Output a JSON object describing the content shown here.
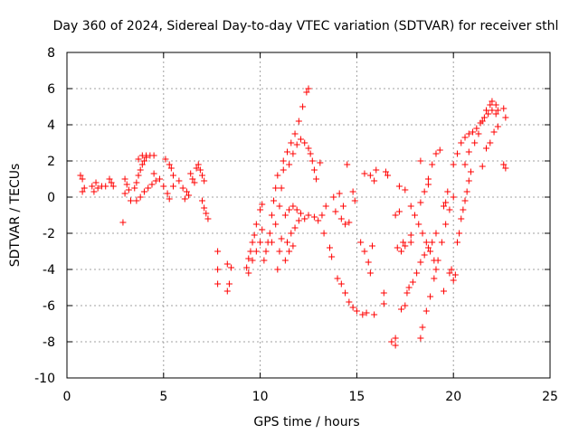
{
  "chart_data": {
    "type": "scatter",
    "title": "Day 360 of 2024, Sidereal Day-to-day VTEC variation (SDTVAR) for receiver sthl",
    "xlabel": "GPS time / hours",
    "ylabel": "SDTVAR / TECUs",
    "xlim": [
      0,
      25
    ],
    "ylim": [
      -10,
      8
    ],
    "xticks": [
      "0",
      "5",
      "10",
      "15",
      "20",
      "25"
    ],
    "yticks": [
      "-10",
      "-8",
      "-6",
      "-4",
      "-2",
      "0",
      "2",
      "4",
      "6",
      "8"
    ],
    "grid": true,
    "marker": "+",
    "color": "#ff0000",
    "series": [
      {
        "name": "SDTVAR",
        "points": [
          [
            0.7,
            1.2
          ],
          [
            0.8,
            1.0
          ],
          [
            0.9,
            0.5
          ],
          [
            0.8,
            0.3
          ],
          [
            1.3,
            0.6
          ],
          [
            1.4,
            0.3
          ],
          [
            1.5,
            0.8
          ],
          [
            1.6,
            0.5
          ],
          [
            1.8,
            0.6
          ],
          [
            2.0,
            0.6
          ],
          [
            2.2,
            1.0
          ],
          [
            2.3,
            0.8
          ],
          [
            2.4,
            0.6
          ],
          [
            2.9,
            -1.4
          ],
          [
            3.0,
            0.2
          ],
          [
            3.0,
            1.0
          ],
          [
            3.1,
            0.7
          ],
          [
            3.2,
            0.4
          ],
          [
            3.3,
            -0.2
          ],
          [
            3.5,
            0.5
          ],
          [
            3.6,
            0.8
          ],
          [
            3.7,
            1.2
          ],
          [
            3.8,
            1.5
          ],
          [
            3.9,
            1.8
          ],
          [
            4.0,
            2.0
          ],
          [
            4.1,
            2.2
          ],
          [
            4.3,
            2.3
          ],
          [
            4.5,
            2.3
          ],
          [
            3.6,
            -0.2
          ],
          [
            3.8,
            0.0
          ],
          [
            4.0,
            0.3
          ],
          [
            4.2,
            0.5
          ],
          [
            4.4,
            0.7
          ],
          [
            4.6,
            0.9
          ],
          [
            4.8,
            1.0
          ],
          [
            3.7,
            2.1
          ],
          [
            3.9,
            2.3
          ],
          [
            4.1,
            2.3
          ],
          [
            4.5,
            1.3
          ],
          [
            5.1,
            2.1
          ],
          [
            5.3,
            1.8
          ],
          [
            5.4,
            1.6
          ],
          [
            5.5,
            1.2
          ],
          [
            5.0,
            0.6
          ],
          [
            5.2,
            0.2
          ],
          [
            5.3,
            -0.1
          ],
          [
            5.5,
            0.6
          ],
          [
            5.8,
            0.9
          ],
          [
            6.0,
            0.5
          ],
          [
            6.2,
            0.3
          ],
          [
            6.3,
            0.1
          ],
          [
            6.1,
            -0.1
          ],
          [
            6.4,
            1.3
          ],
          [
            6.5,
            1.0
          ],
          [
            6.6,
            0.8
          ],
          [
            6.7,
            1.6
          ],
          [
            6.9,
            1.5
          ],
          [
            7.0,
            1.2
          ],
          [
            7.1,
            0.9
          ],
          [
            6.8,
            1.8
          ],
          [
            7.0,
            -0.2
          ],
          [
            7.1,
            -0.6
          ],
          [
            7.2,
            -0.9
          ],
          [
            7.3,
            -1.2
          ],
          [
            7.8,
            -3.0
          ],
          [
            7.8,
            -4.0
          ],
          [
            7.8,
            -4.8
          ],
          [
            8.3,
            -5.2
          ],
          [
            8.4,
            -4.8
          ],
          [
            8.5,
            -3.9
          ],
          [
            8.3,
            -3.7
          ],
          [
            9.3,
            -3.9
          ],
          [
            9.4,
            -3.4
          ],
          [
            9.5,
            -3.0
          ],
          [
            9.6,
            -2.5
          ],
          [
            9.7,
            -2.1
          ],
          [
            9.8,
            -1.5
          ],
          [
            9.4,
            -4.2
          ],
          [
            9.6,
            -3.5
          ],
          [
            9.8,
            -3.0
          ],
          [
            10.0,
            -2.5
          ],
          [
            10.1,
            -1.8
          ],
          [
            10.0,
            -0.7
          ],
          [
            10.1,
            -0.4
          ],
          [
            10.2,
            -3.5
          ],
          [
            10.3,
            -3.0
          ],
          [
            10.4,
            -2.5
          ],
          [
            10.5,
            -2.0
          ],
          [
            10.6,
            -1.0
          ],
          [
            10.7,
            -0.2
          ],
          [
            10.8,
            0.5
          ],
          [
            10.9,
            1.2
          ],
          [
            10.6,
            -2.5
          ],
          [
            10.8,
            -1.5
          ],
          [
            11.0,
            -0.5
          ],
          [
            11.1,
            0.5
          ],
          [
            11.2,
            1.5
          ],
          [
            10.9,
            -4.0
          ],
          [
            11.0,
            -3.0
          ],
          [
            11.1,
            -2.3
          ],
          [
            11.2,
            2.0
          ],
          [
            11.4,
            2.5
          ],
          [
            11.6,
            3.0
          ],
          [
            11.8,
            3.5
          ],
          [
            12.0,
            4.2
          ],
          [
            12.2,
            5.0
          ],
          [
            12.4,
            5.8
          ],
          [
            12.5,
            6.0
          ],
          [
            11.5,
            1.8
          ],
          [
            11.7,
            2.4
          ],
          [
            11.9,
            2.9
          ],
          [
            12.1,
            3.2
          ],
          [
            12.3,
            3.0
          ],
          [
            12.5,
            2.7
          ],
          [
            11.3,
            -1.0
          ],
          [
            11.5,
            -0.7
          ],
          [
            11.7,
            -0.5
          ],
          [
            11.9,
            -0.7
          ],
          [
            12.1,
            -0.9
          ],
          [
            12.3,
            -1.2
          ],
          [
            12.5,
            -1.0
          ],
          [
            11.4,
            -2.5
          ],
          [
            11.6,
            -2.0
          ],
          [
            11.8,
            -1.7
          ],
          [
            12.0,
            -1.3
          ],
          [
            11.3,
            -3.5
          ],
          [
            11.5,
            -3.0
          ],
          [
            11.7,
            -2.7
          ],
          [
            12.6,
            2.4
          ],
          [
            12.7,
            2.0
          ],
          [
            12.8,
            1.5
          ],
          [
            12.9,
            1.0
          ],
          [
            12.8,
            -1.1
          ],
          [
            13.0,
            -1.3
          ],
          [
            13.2,
            -1.0
          ],
          [
            13.1,
            1.9
          ],
          [
            13.3,
            -2.0
          ],
          [
            13.4,
            -0.5
          ],
          [
            13.6,
            -2.8
          ],
          [
            13.7,
            -3.3
          ],
          [
            13.8,
            0.0
          ],
          [
            13.9,
            -0.8
          ],
          [
            14.1,
            0.2
          ],
          [
            14.3,
            -0.5
          ],
          [
            14.2,
            -1.2
          ],
          [
            14.4,
            -1.5
          ],
          [
            14.6,
            -1.4
          ],
          [
            14.5,
            1.8
          ],
          [
            14.8,
            0.3
          ],
          [
            14.9,
            -0.2
          ],
          [
            14.0,
            -4.5
          ],
          [
            14.2,
            -4.8
          ],
          [
            14.4,
            -5.3
          ],
          [
            14.6,
            -5.8
          ],
          [
            14.8,
            -6.1
          ],
          [
            15.0,
            -6.3
          ],
          [
            15.3,
            -6.5
          ],
          [
            15.5,
            -6.4
          ],
          [
            15.9,
            -6.5
          ],
          [
            15.2,
            -2.5
          ],
          [
            15.4,
            -3.0
          ],
          [
            15.6,
            -3.6
          ],
          [
            15.7,
            -4.2
          ],
          [
            15.8,
            -2.7
          ],
          [
            15.4,
            1.3
          ],
          [
            15.7,
            1.2
          ],
          [
            15.9,
            0.9
          ],
          [
            16.0,
            1.5
          ],
          [
            16.4,
            -5.3
          ],
          [
            16.4,
            -5.9
          ],
          [
            16.5,
            1.4
          ],
          [
            16.6,
            1.2
          ],
          [
            16.8,
            -8.0
          ],
          [
            17.0,
            -8.2
          ],
          [
            17.0,
            -7.8
          ],
          [
            17.3,
            -6.2
          ],
          [
            17.5,
            -6.0
          ],
          [
            17.2,
            0.6
          ],
          [
            17.5,
            0.4
          ],
          [
            17.3,
            -3.0
          ],
          [
            17.4,
            -2.5
          ],
          [
            17.5,
            -2.7
          ],
          [
            17.8,
            -2.5
          ],
          [
            17.8,
            -2.1
          ],
          [
            17.1,
            -2.8
          ],
          [
            17.0,
            -1.0
          ],
          [
            17.2,
            -0.8
          ],
          [
            17.6,
            -5.3
          ],
          [
            17.7,
            -5.0
          ],
          [
            17.9,
            -4.7
          ],
          [
            18.1,
            -4.2
          ],
          [
            18.3,
            -3.6
          ],
          [
            18.5,
            -3.2
          ],
          [
            18.7,
            -2.8
          ],
          [
            18.9,
            -2.5
          ],
          [
            19.1,
            -2.0
          ],
          [
            17.8,
            -0.5
          ],
          [
            18.0,
            -1.0
          ],
          [
            18.2,
            -1.5
          ],
          [
            18.4,
            -2.0
          ],
          [
            18.6,
            -2.5
          ],
          [
            18.8,
            -3.0
          ],
          [
            19.0,
            -3.5
          ],
          [
            19.1,
            -4.0
          ],
          [
            18.3,
            -7.8
          ],
          [
            18.4,
            -7.2
          ],
          [
            18.6,
            -6.3
          ],
          [
            18.8,
            -5.5
          ],
          [
            19.0,
            -4.5
          ],
          [
            19.2,
            -3.5
          ],
          [
            19.4,
            -2.5
          ],
          [
            19.6,
            -1.5
          ],
          [
            19.8,
            -0.7
          ],
          [
            20.0,
            0.0
          ],
          [
            18.3,
            -0.3
          ],
          [
            18.5,
            0.3
          ],
          [
            18.7,
            1.0
          ],
          [
            18.9,
            1.8
          ],
          [
            19.1,
            2.4
          ],
          [
            18.7,
            0.7
          ],
          [
            18.3,
            2.0
          ],
          [
            19.3,
            2.6
          ],
          [
            19.5,
            -0.5
          ],
          [
            19.6,
            -0.3
          ],
          [
            19.7,
            0.3
          ],
          [
            19.5,
            -5.2
          ],
          [
            19.8,
            -4.2
          ],
          [
            20.0,
            -4.6
          ],
          [
            20.1,
            -4.3
          ],
          [
            19.9,
            -4.0
          ],
          [
            20.2,
            -2.5
          ],
          [
            20.3,
            -2.0
          ],
          [
            20.4,
            -1.2
          ],
          [
            20.5,
            -0.7
          ],
          [
            20.6,
            -0.2
          ],
          [
            20.7,
            0.3
          ],
          [
            20.8,
            0.9
          ],
          [
            20.9,
            1.4
          ],
          [
            20.0,
            1.8
          ],
          [
            20.2,
            2.4
          ],
          [
            20.4,
            3.0
          ],
          [
            20.6,
            3.3
          ],
          [
            20.8,
            3.5
          ],
          [
            21.0,
            3.6
          ],
          [
            21.2,
            3.8
          ],
          [
            21.4,
            4.1
          ],
          [
            21.6,
            4.4
          ],
          [
            21.8,
            4.6
          ],
          [
            22.0,
            4.8
          ],
          [
            22.2,
            4.6
          ],
          [
            21.1,
            3.0
          ],
          [
            21.3,
            3.5
          ],
          [
            21.5,
            4.2
          ],
          [
            21.7,
            4.8
          ],
          [
            21.9,
            5.1
          ],
          [
            22.0,
            5.3
          ],
          [
            22.2,
            5.1
          ],
          [
            22.3,
            4.8
          ],
          [
            20.6,
            1.8
          ],
          [
            20.8,
            2.5
          ],
          [
            21.5,
            1.7
          ],
          [
            21.7,
            2.7
          ],
          [
            21.9,
            3.0
          ],
          [
            22.1,
            3.6
          ],
          [
            22.3,
            3.9
          ],
          [
            22.6,
            4.9
          ],
          [
            22.7,
            4.4
          ],
          [
            22.6,
            1.8
          ],
          [
            22.7,
            1.6
          ]
        ]
      }
    ]
  }
}
